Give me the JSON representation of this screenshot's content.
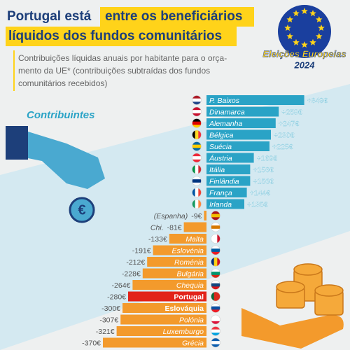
{
  "chart_data": {
    "type": "bar",
    "title": [
      "Portugal está",
      "entre os beneficiários",
      "líquidos dos fundos comunitários"
    ],
    "subtitle": [
      "Contribuições líquidas anuais por habitante para o orça-",
      "mento da UE* (contribuições subtraídas dos fundos",
      "comunitários recebidos)"
    ],
    "annotations": {
      "group_label": "Contribuintes",
      "badge": [
        "Eleições Europeias",
        "2024"
      ],
      "coin": "€"
    },
    "categories": [
      "P. Baixos",
      "Dinamarca",
      "Alemanha",
      "Bélgica",
      "Suécia",
      "Áustria",
      "Itália",
      "Finlândia",
      "França",
      "Irlanda",
      "(Espanha)",
      "Chi.",
      "Malta",
      "Eslovénia",
      "Roménia",
      "Bulgária",
      "Chequia",
      "Portugal",
      "Eslováquia",
      "Polónia",
      "Luxemburgo",
      "Grécia"
    ],
    "values": [
      349,
      258,
      247,
      230,
      225,
      169,
      156,
      156,
      144,
      135,
      -9,
      -81,
      -133,
      -191,
      -212,
      -228,
      -264,
      -280,
      -300,
      -307,
      -321,
      -370
    ],
    "value_labels": [
      "+349€",
      "+258€",
      "+247€",
      "+230€",
      "+225€",
      "+169€",
      "+156€",
      "+156€",
      "+144€",
      "+135€",
      "-9€",
      "-81€",
      "-133€",
      "-191€",
      "-212€",
      "-228€",
      "-264€",
      "-280€",
      "-300€",
      "-307€",
      "-321€",
      "-370€"
    ],
    "colors": [
      "#2aa3c6",
      "#2aa3c6",
      "#2aa3c6",
      "#2aa3c6",
      "#2aa3c6",
      "#2aa3c6",
      "#2aa3c6",
      "#2aa3c6",
      "#2aa3c6",
      "#2aa3c6",
      "#f39a2c",
      "#f39a2c",
      "#f39a2c",
      "#f39a2c",
      "#f39a2c",
      "#f39a2c",
      "#f39a2c",
      "#e2231a",
      "#f39a2c",
      "#f39a2c",
      "#f39a2c",
      "#f39a2c"
    ]
  }
}
